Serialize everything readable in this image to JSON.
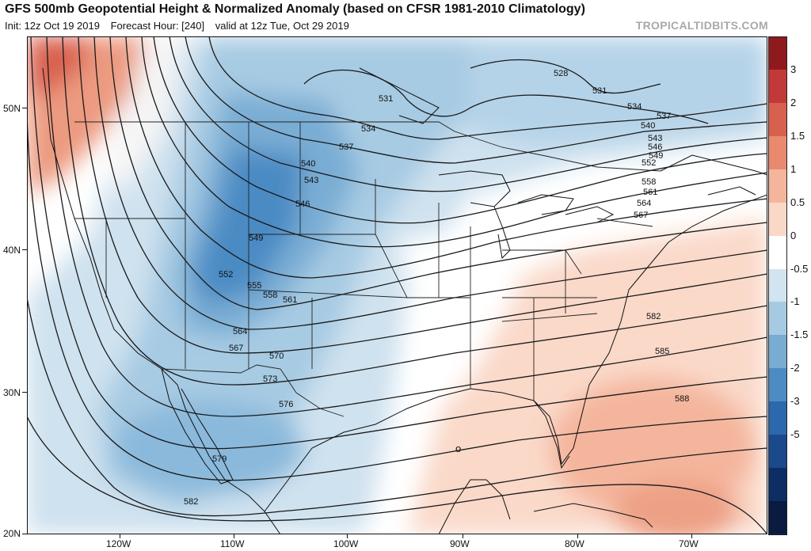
{
  "header": {
    "title": "GFS 500mb Geopotential Height & Normalized Anomaly (based on CFSR 1981-2010 Climatology)",
    "init": "Init: 12z Oct 19 2019",
    "forecast": "Forecast Hour: [240]",
    "valid": "valid at 12z Tue, Oct 29 2019",
    "brand": "TROPICALTIDBITS.COM"
  },
  "axes": {
    "lat_labels": [
      "50N",
      "40N",
      "30N",
      "20N"
    ],
    "lon_labels": [
      "120W",
      "110W",
      "100W",
      "90W",
      "80W",
      "70W"
    ]
  },
  "colorbar": {
    "labels": [
      "3",
      "2",
      "1.5",
      "1",
      "0.5",
      "0",
      "-0.5",
      "-1",
      "-1.5",
      "-2",
      "-3",
      "-5"
    ],
    "colors": [
      "#8e1a1e",
      "#c2393a",
      "#d8604f",
      "#e98a6f",
      "#f4b59c",
      "#fad8c8",
      "#ffffff",
      "#d2e4f0",
      "#a6cae2",
      "#79acd3",
      "#4d8bc4",
      "#2c68ad",
      "#1a4a8c",
      "#0d2d63",
      "#0a1a40"
    ]
  },
  "contours": {
    "labels": [
      "528",
      "531",
      "531",
      "534",
      "534",
      "537",
      "537",
      "540",
      "540",
      "543",
      "543",
      "546",
      "546",
      "549",
      "549",
      "552",
      "552",
      "555",
      "558",
      "558",
      "561",
      "561",
      "564",
      "564",
      "567",
      "567",
      "570",
      "573",
      "576",
      "579",
      "582",
      "582",
      "585",
      "588"
    ]
  },
  "map_text": {
    "low_marker": "o"
  }
}
